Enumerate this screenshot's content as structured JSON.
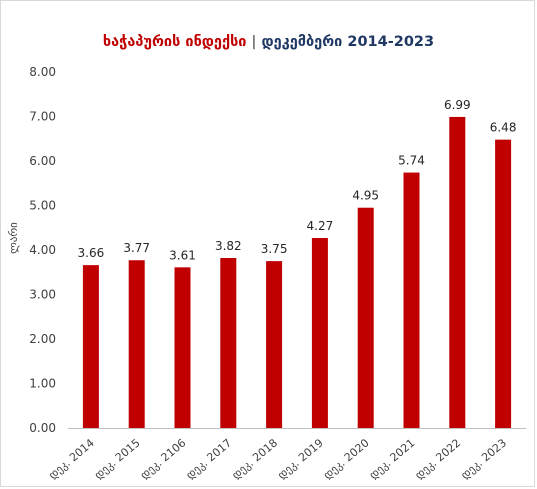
{
  "chart_data": {
    "type": "bar",
    "title": "ხაჭაპურის ინდექსი",
    "title_separator": "|",
    "subtitle": "დეკემბერი 2014-2023",
    "ylabel": "ლარი",
    "xlabel": "",
    "ylim": [
      0,
      8
    ],
    "yticks": [
      "0.00",
      "1.00",
      "2.00",
      "3.00",
      "4.00",
      "5.00",
      "6.00",
      "7.00",
      "8.00"
    ],
    "categories": [
      "დეკ. 2014",
      "დეკ. 2015",
      "დეკ. 2106",
      "დეკ. 2017",
      "დეკ. 2018",
      "დეკ. 2019",
      "დეკ. 2020",
      "დეკ. 2021",
      "დეკ. 2022",
      "დეკ. 2023"
    ],
    "values": [
      3.66,
      3.77,
      3.61,
      3.82,
      3.75,
      4.27,
      4.95,
      5.74,
      6.99,
      6.48
    ],
    "value_labels": [
      "3.66",
      "3.77",
      "3.61",
      "3.82",
      "3.75",
      "4.27",
      "4.95",
      "5.74",
      "6.99",
      "6.48"
    ],
    "bar_color": "#c00000",
    "grid": false,
    "legend": "none"
  }
}
